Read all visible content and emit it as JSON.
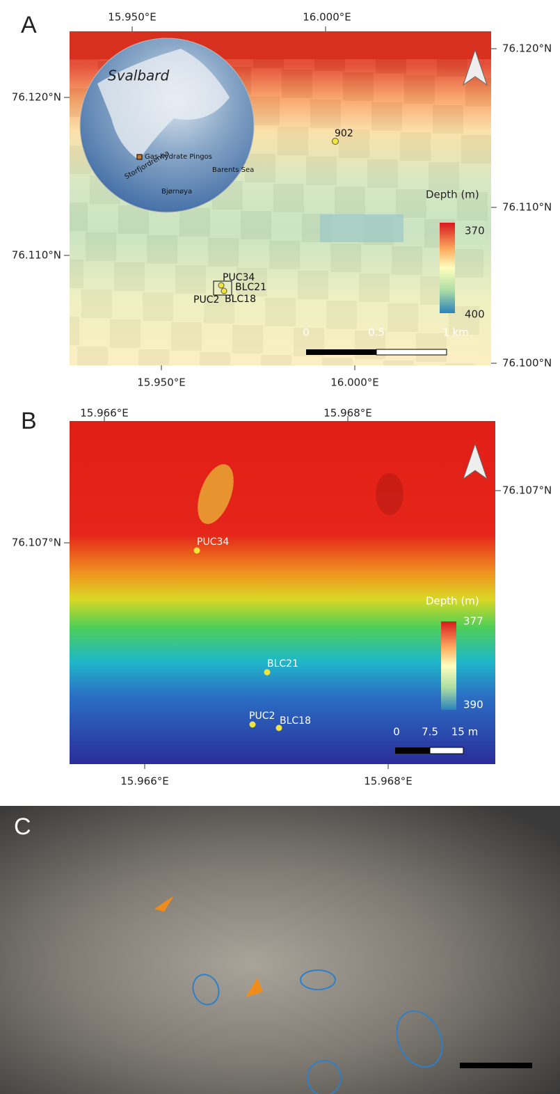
{
  "panels": [
    {
      "label": "A",
      "top_ticks": [
        "15.950°E",
        "16.000°E"
      ],
      "bottom_ticks": [
        "15.950°E",
        "16.000°E"
      ],
      "left_ticks": [
        "76.120°N",
        "76.110°N"
      ],
      "right_ticks": [
        "76.120°N",
        "76.110°N",
        "76.100°N"
      ],
      "inset": {
        "title": "Svalbard",
        "labels": [
          "Gas hydrate Pingos",
          "Storfjordrenna",
          "Barents Sea",
          "Bjørnøya"
        ]
      },
      "stations": [
        "902",
        "PUC34",
        "BLC21",
        "PUC2",
        "BLC18"
      ],
      "legend": {
        "title": "Depth (m)",
        "top": "370",
        "bottom": "400"
      },
      "scale_bar": [
        "0",
        "0.5",
        "1 km"
      ]
    },
    {
      "label": "B",
      "top_ticks": [
        "15.966°E",
        "15.968°E"
      ],
      "bottom_ticks": [
        "15.966°E",
        "15.968°E"
      ],
      "left_ticks": [
        "76.107°N"
      ],
      "right_ticks": [
        "76.107°N"
      ],
      "stations": [
        "PUC34",
        "BLC21",
        "PUC2",
        "BLC18"
      ],
      "legend": {
        "title": "Depth (m)",
        "top": "377",
        "bottom": "390"
      },
      "scale_bar": [
        "0",
        "7.5",
        "15 m"
      ]
    },
    {
      "label": "C"
    }
  ]
}
